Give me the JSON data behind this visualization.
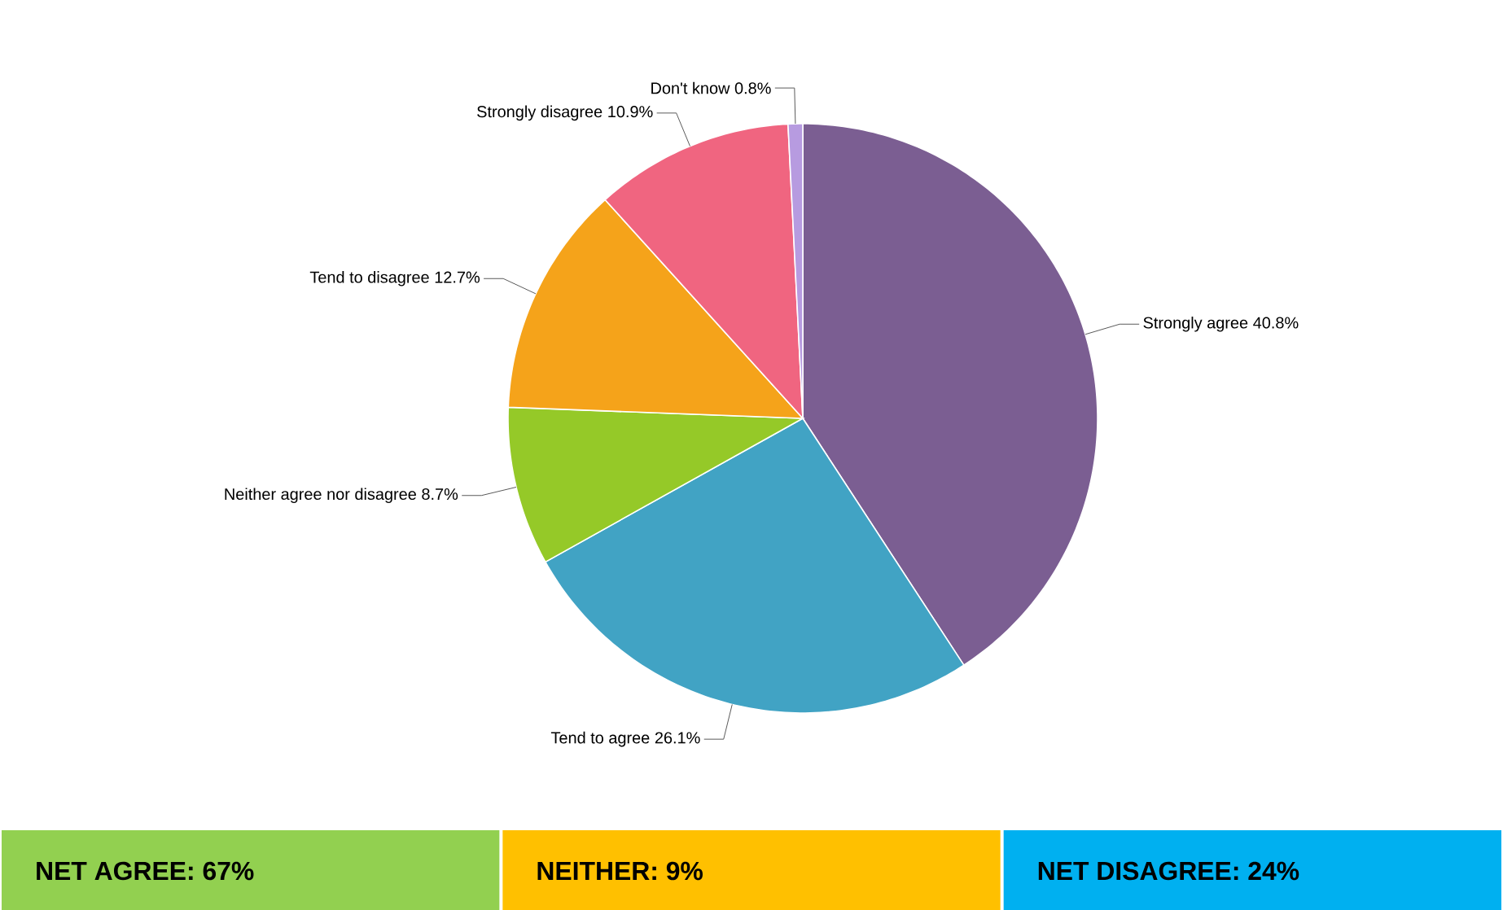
{
  "chart_data": {
    "type": "pie",
    "categories": [
      "Strongly agree",
      "Tend to agree",
      "Neither agree nor disagree",
      "Tend to disagree",
      "Strongly disagree",
      "Don't know"
    ],
    "values": [
      40.8,
      26.1,
      8.7,
      12.7,
      10.9,
      0.8
    ],
    "colors": [
      "#7b5e92",
      "#41a3c4",
      "#95c928",
      "#f5a31a",
      "#f06580",
      "#b79be0"
    ],
    "value_labels": [
      "40.8%",
      "26.1%",
      "8.7%",
      "12.7%",
      "10.9%",
      "0.8%"
    ],
    "annotations": [
      "NET AGREE: 67%",
      "NEITHER: 9%",
      "NET DISAGREE: 24%"
    ]
  }
}
